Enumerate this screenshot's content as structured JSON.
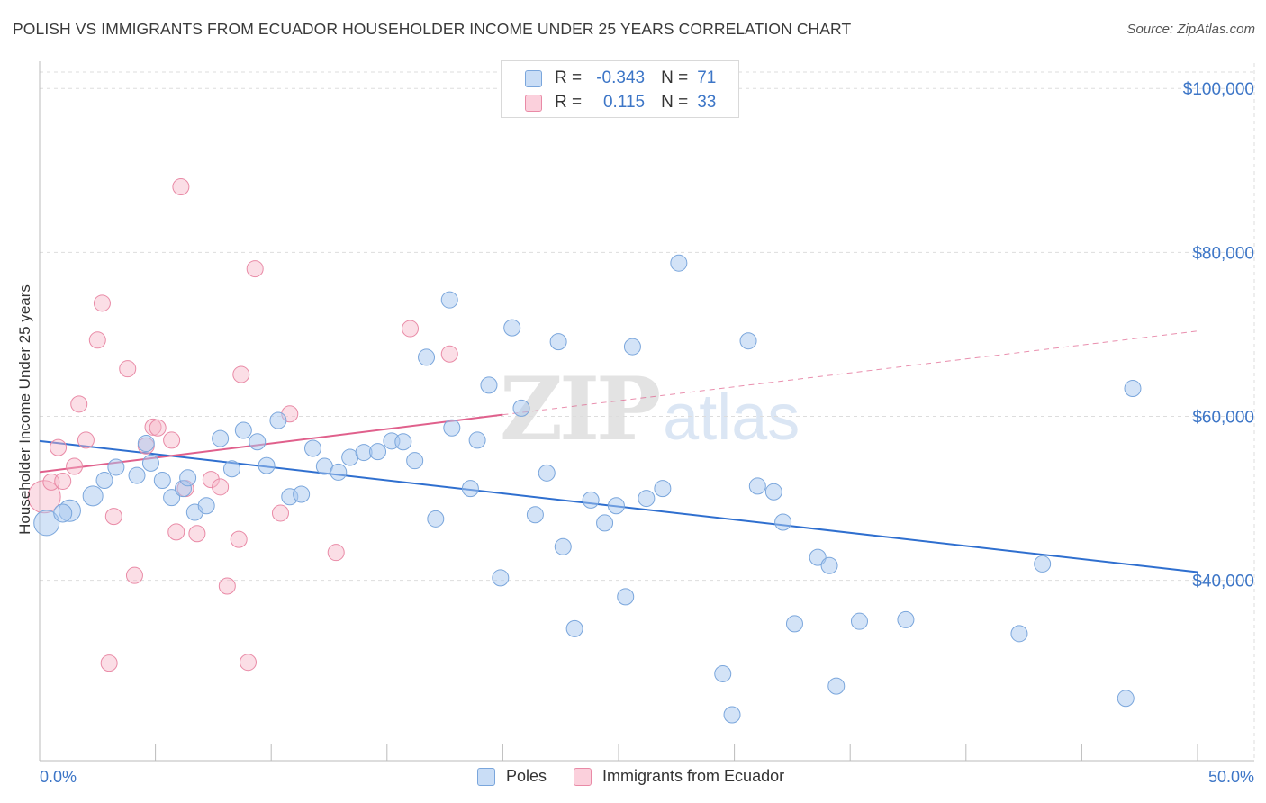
{
  "header": {
    "title": "POLISH VS IMMIGRANTS FROM ECUADOR HOUSEHOLDER INCOME UNDER 25 YEARS CORRELATION CHART",
    "source": "Source: ZipAtlas.com"
  },
  "watermark": {
    "zip": "ZIP",
    "atlas": "atlas"
  },
  "legend": {
    "rows": [
      {
        "r_label": "R =",
        "r_value": "-0.343",
        "n_label": "N =",
        "n_value": "71",
        "color": "#a8c8f0"
      },
      {
        "r_label": "R =",
        "r_value": "0.115",
        "n_label": "N =",
        "n_value": "33",
        "color": "#f7b6c8"
      }
    ]
  },
  "bottom_legend": {
    "poles": "Poles",
    "ecuador": "Immigrants from Ecuador"
  },
  "colors": {
    "poles_fill": "#a8c8f0",
    "poles_stroke": "#7aa6dc",
    "poles_line": "#2f6fcf",
    "ecuador_fill": "#f7b6c8",
    "ecuador_stroke": "#e98aa6",
    "ecuador_line": "#e0608c",
    "grid": "#dddddd",
    "axis_text": "#3d76c7"
  },
  "chart_data": {
    "type": "scatter",
    "title": "POLISH VS IMMIGRANTS FROM ECUADOR HOUSEHOLDER INCOME UNDER 25 YEARS CORRELATION CHART",
    "xlabel": "",
    "ylabel": "Householder Income Under 25 years",
    "xlim": [
      0,
      50
    ],
    "ylim": [
      18000,
      102000
    ],
    "x_tick_labels": [
      "0.0%",
      "50.0%"
    ],
    "y_ticks": [
      40000,
      60000,
      80000,
      100000
    ],
    "y_tick_labels": [
      "$40,000",
      "$60,000",
      "$80,000",
      "$100,000"
    ],
    "grid": true,
    "legend_position": "top-center",
    "series": [
      {
        "name": "Poles",
        "r": -0.343,
        "n": 71,
        "trend": {
          "x": [
            0,
            50
          ],
          "y": [
            57000,
            41000
          ],
          "dashed_to": null
        },
        "points": [
          [
            0.3,
            47000,
            14
          ],
          [
            1.3,
            48500,
            12
          ],
          [
            2.3,
            50300,
            11
          ],
          [
            1.0,
            48200,
            10
          ],
          [
            2.8,
            52200,
            9
          ],
          [
            3.3,
            53800,
            9
          ],
          [
            4.2,
            52800,
            9
          ],
          [
            4.8,
            54300,
            9
          ],
          [
            5.3,
            52200,
            9
          ],
          [
            4.6,
            56700,
            9
          ],
          [
            5.7,
            50100,
            9
          ],
          [
            6.2,
            51200,
            9
          ],
          [
            6.4,
            52500,
            9
          ],
          [
            6.7,
            48300,
            9
          ],
          [
            7.2,
            49100,
            9
          ],
          [
            7.8,
            57300,
            9
          ],
          [
            8.3,
            53600,
            9
          ],
          [
            8.8,
            58300,
            9
          ],
          [
            9.4,
            56900,
            9
          ],
          [
            9.8,
            54000,
            9
          ],
          [
            10.3,
            59500,
            9
          ],
          [
            10.8,
            50200,
            9
          ],
          [
            11.3,
            50500,
            9
          ],
          [
            11.8,
            56100,
            9
          ],
          [
            12.3,
            53900,
            9
          ],
          [
            12.9,
            53200,
            9
          ],
          [
            13.4,
            55000,
            9
          ],
          [
            14.0,
            55600,
            9
          ],
          [
            14.6,
            55700,
            9
          ],
          [
            15.2,
            57000,
            9
          ],
          [
            15.7,
            56900,
            9
          ],
          [
            16.2,
            54600,
            9
          ],
          [
            16.7,
            67200,
            9
          ],
          [
            17.1,
            47500,
            9
          ],
          [
            17.7,
            74200,
            9
          ],
          [
            17.8,
            58600,
            9
          ],
          [
            18.6,
            51200,
            9
          ],
          [
            18.9,
            57100,
            9
          ],
          [
            19.4,
            63800,
            9
          ],
          [
            19.9,
            40300,
            9
          ],
          [
            20.4,
            70800,
            9
          ],
          [
            20.8,
            61000,
            9
          ],
          [
            21.4,
            48000,
            9
          ],
          [
            21.9,
            53100,
            9
          ],
          [
            22.4,
            69100,
            9
          ],
          [
            22.6,
            44100,
            9
          ],
          [
            23.1,
            34100,
            9
          ],
          [
            23.8,
            49800,
            9
          ],
          [
            24.4,
            47000,
            9
          ],
          [
            24.9,
            49100,
            9
          ],
          [
            25.3,
            38000,
            9
          ],
          [
            25.6,
            68500,
            9
          ],
          [
            26.2,
            50000,
            9
          ],
          [
            26.9,
            51200,
            9
          ],
          [
            27.6,
            78700,
            9
          ],
          [
            29.5,
            28600,
            9
          ],
          [
            29.9,
            23600,
            9
          ],
          [
            30.6,
            69200,
            9
          ],
          [
            31.0,
            51500,
            9
          ],
          [
            31.7,
            50800,
            9
          ],
          [
            32.1,
            47100,
            9
          ],
          [
            32.6,
            34700,
            9
          ],
          [
            33.6,
            42800,
            9
          ],
          [
            34.1,
            41800,
            9
          ],
          [
            34.4,
            27100,
            9
          ],
          [
            35.4,
            35000,
            9
          ],
          [
            37.4,
            35200,
            9
          ],
          [
            42.3,
            33500,
            9
          ],
          [
            43.3,
            42000,
            9
          ],
          [
            46.9,
            25600,
            9
          ],
          [
            47.2,
            63400,
            9
          ]
        ]
      },
      {
        "name": "Immigrants from Ecuador",
        "r": 0.115,
        "n": 33,
        "trend": {
          "x": [
            0,
            20
          ],
          "y": [
            53200,
            60200
          ],
          "dashed_to": {
            "x": 50,
            "y": 70400
          }
        },
        "points": [
          [
            0.2,
            50200,
            18
          ],
          [
            0.5,
            52000,
            9
          ],
          [
            0.8,
            56200,
            9
          ],
          [
            1.0,
            52100,
            9
          ],
          [
            1.5,
            53900,
            9
          ],
          [
            1.7,
            61500,
            9
          ],
          [
            2.0,
            57100,
            9
          ],
          [
            2.5,
            69300,
            9
          ],
          [
            2.7,
            73800,
            9
          ],
          [
            3.0,
            29900,
            9
          ],
          [
            3.2,
            47800,
            9
          ],
          [
            3.8,
            65800,
            9
          ],
          [
            4.1,
            40600,
            9
          ],
          [
            4.6,
            56400,
            9
          ],
          [
            4.9,
            58700,
            9
          ],
          [
            5.1,
            58600,
            9
          ],
          [
            5.7,
            57100,
            9
          ],
          [
            5.9,
            45900,
            9
          ],
          [
            6.1,
            88000,
            9
          ],
          [
            6.3,
            51200,
            9
          ],
          [
            6.8,
            45700,
            9
          ],
          [
            7.4,
            52300,
            9
          ],
          [
            7.8,
            51400,
            9
          ],
          [
            8.1,
            39300,
            9
          ],
          [
            8.6,
            45000,
            9
          ],
          [
            9.0,
            30000,
            9
          ],
          [
            8.7,
            65100,
            9
          ],
          [
            9.3,
            78000,
            9
          ],
          [
            10.4,
            48200,
            9
          ],
          [
            10.8,
            60300,
            9
          ],
          [
            12.8,
            43400,
            9
          ],
          [
            16.0,
            70700,
            9
          ],
          [
            17.7,
            67600,
            9
          ]
        ]
      }
    ]
  }
}
